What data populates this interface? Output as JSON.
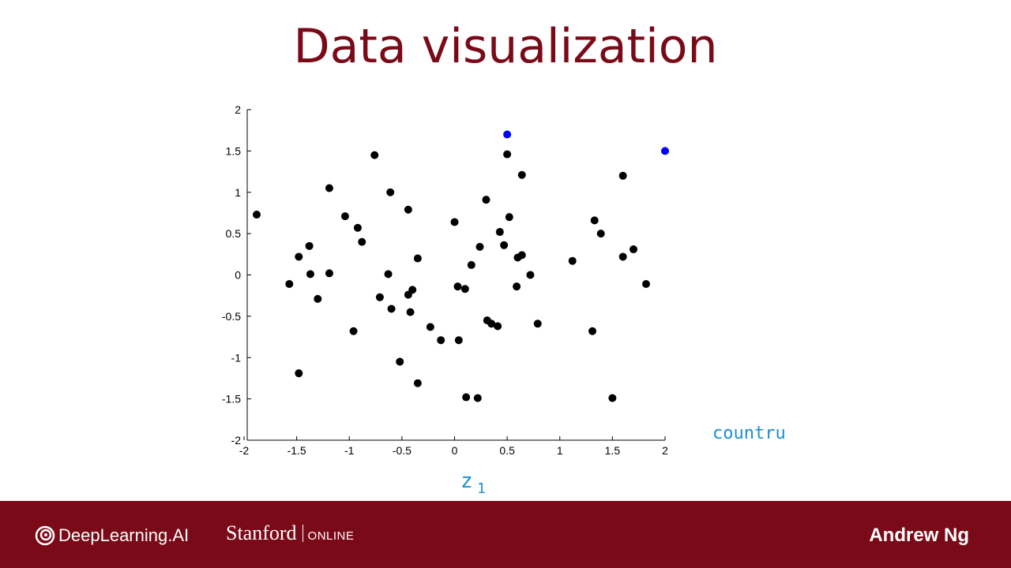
{
  "slide": {
    "title": "Data visualization",
    "annotations": {
      "country": "countru",
      "z1_letter": "z",
      "z1_sub": "1"
    }
  },
  "footer": {
    "logo_deeplearning": "DeepLearning.AI",
    "logo_stanford": "Stanford",
    "logo_online": "ONLINE",
    "author": "Andrew Ng",
    "color": "#7a0a17"
  },
  "chart_data": {
    "type": "scatter",
    "xlim": [
      -2,
      2
    ],
    "ylim": [
      -2,
      2
    ],
    "xticks": [
      "-2",
      "-1.5",
      "-1",
      "-0.5",
      "0",
      "0.5",
      "1",
      "1.5",
      "2"
    ],
    "yticks": [
      "2",
      "1.5",
      "1",
      "0.5",
      "0",
      "-0.5",
      "-1",
      "-1.5",
      "-2"
    ],
    "grid": false,
    "series": [
      {
        "color": "#000000",
        "points": [
          [
            -1.88,
            0.73
          ],
          [
            -1.57,
            -0.11
          ],
          [
            -1.48,
            0.22
          ],
          [
            -1.38,
            0.35
          ],
          [
            -1.37,
            0.01
          ],
          [
            -1.3,
            -0.29
          ],
          [
            -1.48,
            -1.19
          ],
          [
            -1.19,
            1.05
          ],
          [
            -1.19,
            0.02
          ],
          [
            -1.04,
            0.71
          ],
          [
            -0.92,
            0.57
          ],
          [
            -0.96,
            -0.68
          ],
          [
            -0.88,
            0.4
          ],
          [
            -0.76,
            1.45
          ],
          [
            -0.71,
            -0.27
          ],
          [
            -0.61,
            1.0
          ],
          [
            -0.63,
            0.01
          ],
          [
            -0.6,
            -0.41
          ],
          [
            -0.52,
            -1.05
          ],
          [
            -0.44,
            0.79
          ],
          [
            -0.44,
            -0.24
          ],
          [
            -0.4,
            -0.18
          ],
          [
            -0.42,
            -0.45
          ],
          [
            -0.35,
            0.2
          ],
          [
            -0.35,
            -1.31
          ],
          [
            -0.23,
            -0.63
          ],
          [
            -0.13,
            -0.79
          ],
          [
            0.0,
            0.64
          ],
          [
            0.03,
            -0.14
          ],
          [
            0.04,
            -0.79
          ],
          [
            0.1,
            -0.17
          ],
          [
            0.11,
            -1.48
          ],
          [
            0.16,
            0.12
          ],
          [
            0.22,
            -1.49
          ],
          [
            0.24,
            0.34
          ],
          [
            0.3,
            0.91
          ],
          [
            0.31,
            -0.55
          ],
          [
            0.35,
            -0.59
          ],
          [
            0.41,
            -0.62
          ],
          [
            0.43,
            0.52
          ],
          [
            0.47,
            0.36
          ],
          [
            0.5,
            1.46
          ],
          [
            0.52,
            0.7
          ],
          [
            0.59,
            -0.14
          ],
          [
            0.6,
            0.21
          ],
          [
            0.64,
            1.21
          ],
          [
            0.64,
            0.24
          ],
          [
            0.72,
            0.0
          ],
          [
            0.79,
            -0.59
          ],
          [
            1.12,
            0.17
          ],
          [
            1.31,
            -0.68
          ],
          [
            1.33,
            0.66
          ],
          [
            1.39,
            0.5
          ],
          [
            1.5,
            -1.49
          ],
          [
            1.6,
            1.2
          ],
          [
            1.6,
            0.22
          ],
          [
            1.7,
            0.31
          ],
          [
            1.82,
            -0.11
          ]
        ]
      },
      {
        "color": "#0000ff",
        "points": [
          [
            0.5,
            1.7
          ],
          [
            2.0,
            1.5
          ]
        ]
      }
    ]
  }
}
